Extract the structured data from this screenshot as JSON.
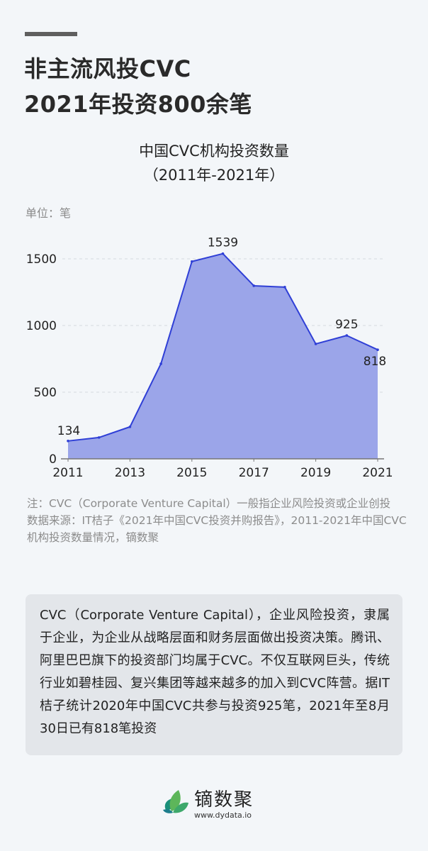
{
  "header": {
    "title_line1": "非主流风投CVC",
    "title_line2": "2021年投资800余笔"
  },
  "chart_title": {
    "line1": "中国CVC机构投资数量",
    "line2": "（2011年-2021年）"
  },
  "unit_label": "单位：笔",
  "chart_data": {
    "type": "area",
    "title": "中国CVC机构投资数量（2011年-2021年）",
    "xlabel": "",
    "ylabel": "单位：笔",
    "x": [
      2011,
      2012,
      2013,
      2014,
      2015,
      2016,
      2017,
      2018,
      2019,
      2020,
      2021
    ],
    "values": [
      134,
      160,
      240,
      713,
      1480,
      1539,
      1298,
      1288,
      862,
      925,
      818
    ],
    "x_tick_labels": [
      "2011",
      "2013",
      "2015",
      "2017",
      "2019",
      "2021"
    ],
    "y_tick_labels": [
      "0",
      "500",
      "1000",
      "1500"
    ],
    "ylim": [
      0,
      1600
    ],
    "data_labels": [
      {
        "x": 2011,
        "label": "134"
      },
      {
        "x": 2016,
        "label": "1539"
      },
      {
        "x": 2020,
        "label": "925"
      },
      {
        "x": 2021,
        "label": "818"
      }
    ],
    "grid": "horizontal dashed",
    "legend": "none",
    "colors": {
      "line": "#2f3fd6",
      "fill": "#9ba5e9",
      "grid": "#d6d9de",
      "axis": "#777777"
    }
  },
  "notes": {
    "note": "注：CVC（Corporate Venture Capital）一般指企业风险投资或企业创投",
    "source": "数据来源：IT桔子《2021年中国CVC投资并购报告》，2011-2021年中国CVC机构投资数量情况，镝数聚"
  },
  "summary": {
    "text": "CVC（Corporate Venture Capital），企业风险投资，隶属于企业，为企业从战略层面和财务层面做出投资决策。腾讯、阿里巴巴旗下的投资部门均属于CVC。不仅互联网巨头，传统行业如碧桂园、复兴集团等越来越多的加入到CVC阵营。据IT桔子统计2020年中国CVC共参与投资925笔，2021年至8月30日已有818笔投资"
  },
  "brand": {
    "name": "镝数聚",
    "url": "www.dydata.io",
    "icon": "leaf-logo-icon"
  }
}
